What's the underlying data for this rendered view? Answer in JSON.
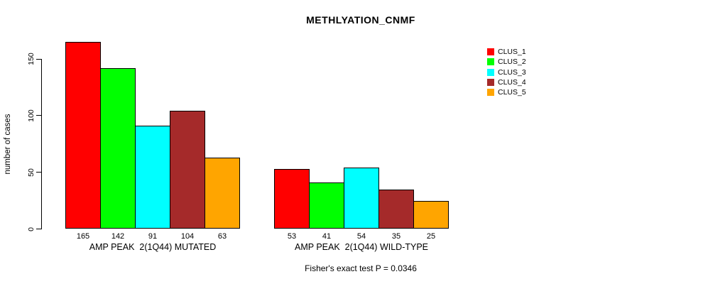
{
  "chart_data": {
    "type": "bar",
    "title": "METHLYATION_CNMF",
    "xlabel": "",
    "ylabel": "number of cases",
    "ylim": [
      0,
      165
    ],
    "yticks": [
      0,
      50,
      100,
      150
    ],
    "grid": false,
    "legend_position": "right",
    "categories": [
      "AMP PEAK  2(1Q44) MUTATED",
      "AMP PEAK  2(1Q44) WILD-TYPE"
    ],
    "series": [
      {
        "name": "CLUS_1",
        "color": "#ff0000",
        "values": [
          165,
          53
        ]
      },
      {
        "name": "CLUS_2",
        "color": "#00ff00",
        "values": [
          142,
          41
        ]
      },
      {
        "name": "CLUS_3",
        "color": "#00ffff",
        "values": [
          91,
          54
        ]
      },
      {
        "name": "CLUS_4",
        "color": "#a52a2a",
        "values": [
          104,
          35
        ]
      },
      {
        "name": "CLUS_5",
        "color": "#ffa500",
        "values": [
          63,
          25
        ]
      }
    ],
    "bar_value_labels": [
      [
        "165",
        "142",
        "91",
        "104",
        "63"
      ],
      [
        "53",
        "41",
        "54",
        "35",
        "25"
      ]
    ],
    "annotation": "Fisher's exact test P = 0.0346"
  }
}
